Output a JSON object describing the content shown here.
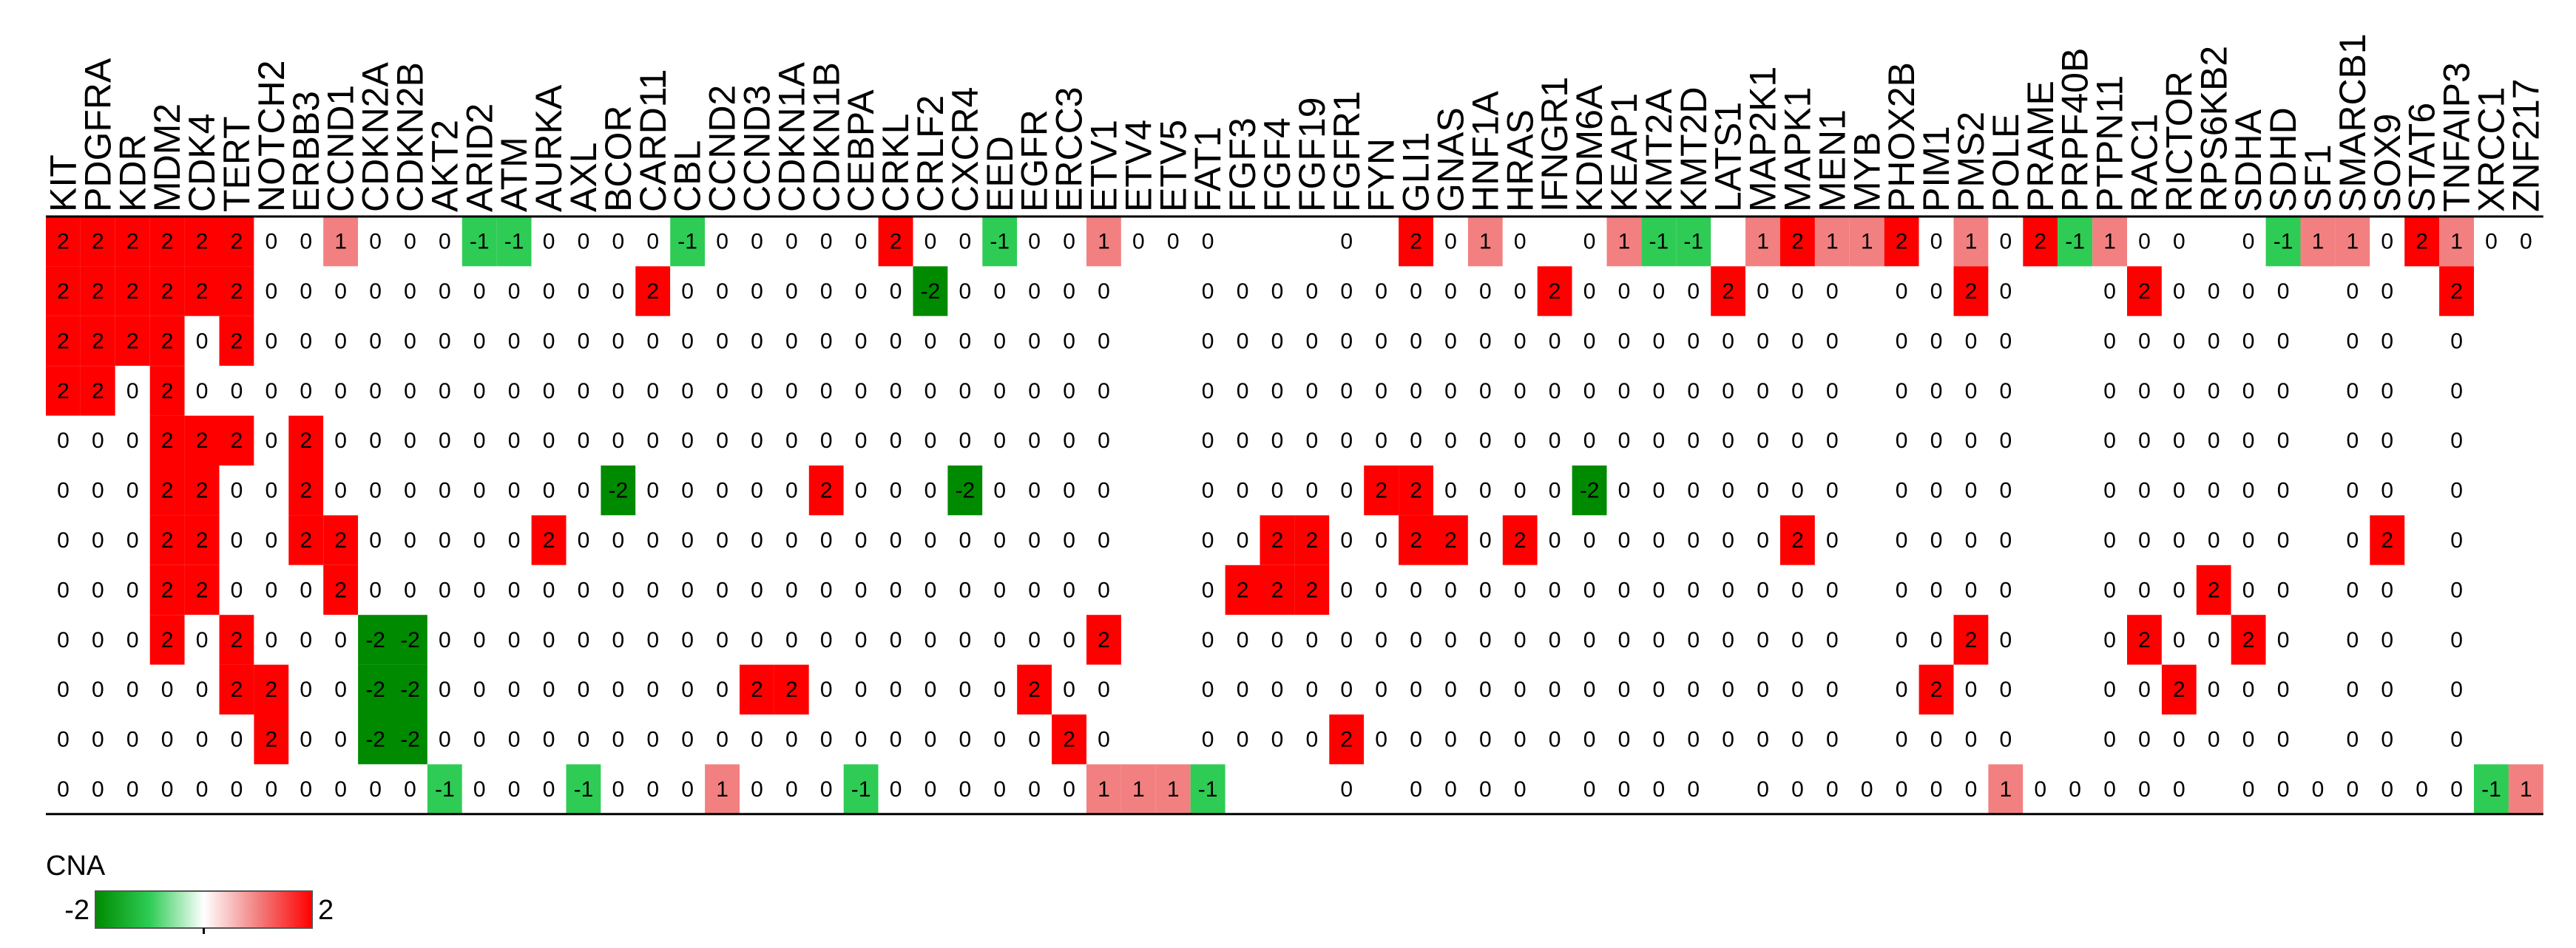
{
  "chart_data": {
    "type": "heatmap",
    "columns": [
      "KIT",
      "PDGFRA",
      "KDR",
      "MDM2",
      "CDK4",
      "TERT",
      "NOTCH2",
      "ERBB3",
      "CCND1",
      "CDKN2A",
      "CDKN2B",
      "AKT2",
      "ARID2",
      "ATM",
      "AURKA",
      "AXL",
      "BCOR",
      "CARD11",
      "CBL",
      "CCND2",
      "CCND3",
      "CDKN1A",
      "CDKN1B",
      "CEBPA",
      "CRKL",
      "CRLF2",
      "CXCR4",
      "EED",
      "EGFR",
      "ERCC3",
      "ETV1",
      "ETV4",
      "ETV5",
      "FAT1",
      "FGF3",
      "FGF4",
      "FGF19",
      "FGFR1",
      "FYN",
      "GLI1",
      "GNAS",
      "HNF1A",
      "HRAS",
      "IFNGR1",
      "KDM6A",
      "KEAP1",
      "KMT2A",
      "KMT2D",
      "LATS1",
      "MAP2K1",
      "MAPK1",
      "MEN1",
      "MYB",
      "PHOX2B",
      "PIM1",
      "PMS2",
      "POLE",
      "PRAME",
      "PRPF40B",
      "PTPN11",
      "RAC1",
      "RICTOR",
      "RPS6KB2",
      "SDHA",
      "SDHD",
      "SF1",
      "SMARCB1",
      "SOX9",
      "STAT6",
      "TNFAIP3",
      "XRCC1",
      "ZNF217"
    ],
    "values": [
      [
        2,
        2,
        2,
        2,
        2,
        2,
        0,
        0,
        1,
        0,
        0,
        0,
        -1,
        -1,
        0,
        0,
        0,
        0,
        -1,
        0,
        0,
        0,
        0,
        0,
        2,
        0,
        0,
        -1,
        0,
        0,
        1,
        0,
        0,
        0,
        null,
        null,
        null,
        0,
        null,
        2,
        0,
        1,
        0,
        null,
        0,
        1,
        -1,
        -1,
        null,
        1,
        2,
        1,
        1,
        2,
        0,
        1,
        0,
        2,
        -1,
        1,
        0,
        0,
        null,
        0,
        -1,
        1,
        1,
        0,
        2,
        1,
        0,
        0
      ],
      [
        2,
        2,
        2,
        2,
        2,
        2,
        0,
        0,
        0,
        0,
        0,
        0,
        0,
        0,
        0,
        0,
        0,
        2,
        0,
        0,
        0,
        0,
        0,
        0,
        0,
        -2,
        0,
        0,
        0,
        0,
        0,
        null,
        null,
        0,
        0,
        0,
        0,
        0,
        0,
        0,
        0,
        0,
        0,
        2,
        0,
        0,
        0,
        0,
        2,
        0,
        0,
        0,
        null,
        0,
        0,
        2,
        0,
        null,
        null,
        0,
        2,
        0,
        0,
        0,
        0,
        null,
        0,
        0,
        null,
        2,
        null,
        null
      ],
      [
        2,
        2,
        2,
        2,
        0,
        2,
        0,
        0,
        0,
        0,
        0,
        0,
        0,
        0,
        0,
        0,
        0,
        0,
        0,
        0,
        0,
        0,
        0,
        0,
        0,
        0,
        0,
        0,
        0,
        0,
        0,
        null,
        null,
        0,
        0,
        0,
        0,
        0,
        0,
        0,
        0,
        0,
        0,
        0,
        0,
        0,
        0,
        0,
        0,
        0,
        0,
        0,
        null,
        0,
        0,
        0,
        0,
        null,
        null,
        0,
        0,
        0,
        0,
        0,
        0,
        null,
        0,
        0,
        null,
        0,
        null,
        null
      ],
      [
        2,
        2,
        0,
        2,
        0,
        0,
        0,
        0,
        0,
        0,
        0,
        0,
        0,
        0,
        0,
        0,
        0,
        0,
        0,
        0,
        0,
        0,
        0,
        0,
        0,
        0,
        0,
        0,
        0,
        0,
        0,
        null,
        null,
        0,
        0,
        0,
        0,
        0,
        0,
        0,
        0,
        0,
        0,
        0,
        0,
        0,
        0,
        0,
        0,
        0,
        0,
        0,
        null,
        0,
        0,
        0,
        0,
        null,
        null,
        0,
        0,
        0,
        0,
        0,
        0,
        null,
        0,
        0,
        null,
        0,
        null,
        null
      ],
      [
        0,
        0,
        0,
        2,
        2,
        2,
        0,
        2,
        0,
        0,
        0,
        0,
        0,
        0,
        0,
        0,
        0,
        0,
        0,
        0,
        0,
        0,
        0,
        0,
        0,
        0,
        0,
        0,
        0,
        0,
        0,
        null,
        null,
        0,
        0,
        0,
        0,
        0,
        0,
        0,
        0,
        0,
        0,
        0,
        0,
        0,
        0,
        0,
        0,
        0,
        0,
        0,
        null,
        0,
        0,
        0,
        0,
        null,
        null,
        0,
        0,
        0,
        0,
        0,
        0,
        null,
        0,
        0,
        null,
        0,
        null,
        null
      ],
      [
        0,
        0,
        0,
        2,
        2,
        0,
        0,
        2,
        0,
        0,
        0,
        0,
        0,
        0,
        0,
        0,
        -2,
        0,
        0,
        0,
        0,
        0,
        2,
        0,
        0,
        0,
        -2,
        0,
        0,
        0,
        0,
        null,
        null,
        0,
        0,
        0,
        0,
        0,
        2,
        2,
        0,
        0,
        0,
        0,
        -2,
        0,
        0,
        0,
        0,
        0,
        0,
        0,
        null,
        0,
        0,
        0,
        0,
        null,
        null,
        0,
        0,
        0,
        0,
        0,
        0,
        null,
        0,
        0,
        null,
        0,
        null,
        null
      ],
      [
        0,
        0,
        0,
        2,
        2,
        0,
        0,
        2,
        2,
        0,
        0,
        0,
        0,
        0,
        2,
        0,
        0,
        0,
        0,
        0,
        0,
        0,
        0,
        0,
        0,
        0,
        0,
        0,
        0,
        0,
        0,
        null,
        null,
        0,
        0,
        2,
        2,
        0,
        0,
        2,
        2,
        0,
        2,
        0,
        0,
        0,
        0,
        0,
        0,
        0,
        2,
        0,
        null,
        0,
        0,
        0,
        0,
        null,
        null,
        0,
        0,
        0,
        0,
        0,
        0,
        null,
        0,
        2,
        null,
        0,
        null,
        null
      ],
      [
        0,
        0,
        0,
        2,
        2,
        0,
        0,
        0,
        2,
        0,
        0,
        0,
        0,
        0,
        0,
        0,
        0,
        0,
        0,
        0,
        0,
        0,
        0,
        0,
        0,
        0,
        0,
        0,
        0,
        0,
        0,
        null,
        null,
        0,
        2,
        2,
        2,
        0,
        0,
        0,
        0,
        0,
        0,
        0,
        0,
        0,
        0,
        0,
        0,
        0,
        0,
        0,
        null,
        0,
        0,
        0,
        0,
        null,
        null,
        0,
        0,
        0,
        2,
        0,
        0,
        null,
        0,
        0,
        null,
        0,
        null,
        null
      ],
      [
        0,
        0,
        0,
        2,
        0,
        2,
        0,
        0,
        0,
        -2,
        -2,
        0,
        0,
        0,
        0,
        0,
        0,
        0,
        0,
        0,
        0,
        0,
        0,
        0,
        0,
        0,
        0,
        0,
        0,
        0,
        2,
        null,
        null,
        0,
        0,
        0,
        0,
        0,
        0,
        0,
        0,
        0,
        0,
        0,
        0,
        0,
        0,
        0,
        0,
        0,
        0,
        0,
        null,
        0,
        0,
        2,
        0,
        null,
        null,
        0,
        2,
        0,
        0,
        2,
        0,
        null,
        0,
        0,
        null,
        0,
        null,
        null
      ],
      [
        0,
        0,
        0,
        0,
        0,
        2,
        2,
        0,
        0,
        -2,
        -2,
        0,
        0,
        0,
        0,
        0,
        0,
        0,
        0,
        0,
        2,
        2,
        0,
        0,
        0,
        0,
        0,
        0,
        2,
        0,
        0,
        null,
        null,
        0,
        0,
        0,
        0,
        0,
        0,
        0,
        0,
        0,
        0,
        0,
        0,
        0,
        0,
        0,
        0,
        0,
        0,
        0,
        null,
        0,
        2,
        0,
        0,
        null,
        null,
        0,
        0,
        2,
        0,
        0,
        0,
        null,
        0,
        0,
        null,
        0,
        null,
        null
      ],
      [
        0,
        0,
        0,
        0,
        0,
        0,
        2,
        0,
        0,
        -2,
        -2,
        0,
        0,
        0,
        0,
        0,
        0,
        0,
        0,
        0,
        0,
        0,
        0,
        0,
        0,
        0,
        0,
        0,
        0,
        2,
        0,
        null,
        null,
        0,
        0,
        0,
        0,
        2,
        0,
        0,
        0,
        0,
        0,
        0,
        0,
        0,
        0,
        0,
        0,
        0,
        0,
        0,
        null,
        0,
        0,
        0,
        0,
        null,
        null,
        0,
        0,
        0,
        0,
        0,
        0,
        null,
        0,
        0,
        null,
        0,
        null,
        null
      ],
      [
        0,
        0,
        0,
        0,
        0,
        0,
        0,
        0,
        0,
        0,
        0,
        -1,
        0,
        0,
        0,
        -1,
        0,
        0,
        0,
        1,
        0,
        0,
        0,
        -1,
        0,
        0,
        0,
        0,
        0,
        0,
        1,
        1,
        1,
        -1,
        null,
        null,
        null,
        0,
        null,
        0,
        0,
        0,
        0,
        null,
        0,
        0,
        0,
        0,
        null,
        0,
        0,
        0,
        0,
        0,
        0,
        0,
        1,
        0,
        0,
        0,
        0,
        0,
        null,
        0,
        0,
        0,
        0,
        0,
        0,
        0,
        -1,
        1
      ]
    ],
    "legend_title": "CNA",
    "zlim": [
      -2,
      2
    ],
    "colorscale": [
      "#008a00",
      "#2ecc55",
      "#ffffff",
      "#f28080",
      "#ff0000"
    ]
  }
}
